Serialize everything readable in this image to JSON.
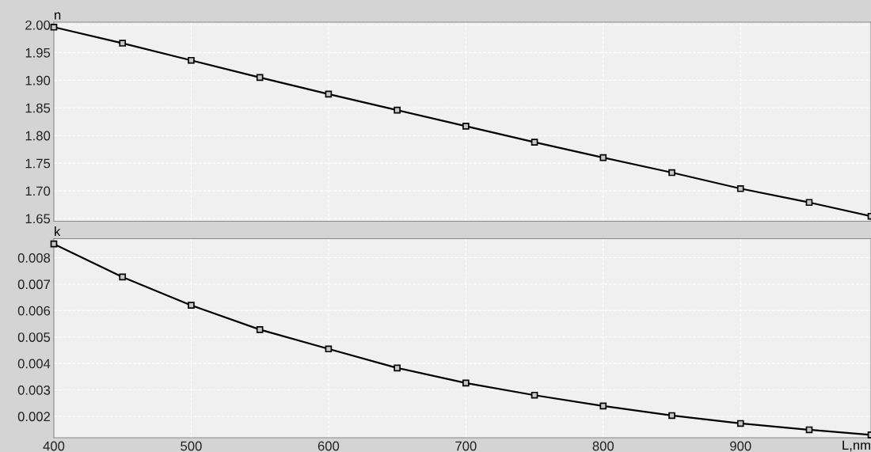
{
  "chart_data": [
    {
      "type": "line",
      "ylabel": "n",
      "x": [
        400,
        450,
        500,
        550,
        600,
        650,
        700,
        750,
        800,
        850,
        900,
        950,
        995
      ],
      "series": [
        {
          "color": "#000000",
          "values": [
            1.996,
            1.967,
            1.936,
            1.905,
            1.875,
            1.846,
            1.817,
            1.788,
            1.76,
            1.733,
            1.704,
            1.679,
            1.654
          ]
        }
      ],
      "xlim": [
        400,
        995
      ],
      "xticks": [
        400,
        500,
        600,
        700,
        800,
        900
      ],
      "ylim": [
        1.645,
        2.005
      ],
      "yticks": [
        {
          "value": 1.65,
          "label": "1.65"
        },
        {
          "value": 1.7,
          "label": "1.70"
        },
        {
          "value": 1.75,
          "label": "1.75"
        },
        {
          "value": 1.8,
          "label": "1.80"
        },
        {
          "value": 1.85,
          "label": "1.85"
        },
        {
          "value": 1.9,
          "label": "1.90"
        },
        {
          "value": 1.95,
          "label": "1.95"
        },
        {
          "value": 2.0,
          "label": "2.00"
        }
      ],
      "grid": true,
      "marker": "square",
      "line_style": "solid",
      "tick_labels": "y"
    },
    {
      "type": "line",
      "ylabel": "k",
      "xlabel": "L,nm",
      "x": [
        400,
        450,
        500,
        550,
        600,
        650,
        700,
        750,
        800,
        850,
        900,
        950,
        995
      ],
      "series": [
        {
          "color": "#000000",
          "values": [
            0.00852,
            0.00727,
            0.0062,
            0.00528,
            0.00455,
            0.00383,
            0.00326,
            0.0028,
            0.00239,
            0.00203,
            0.00173,
            0.00149,
            0.0013
          ]
        }
      ],
      "xlim": [
        400,
        995
      ],
      "xticks": [
        400,
        500,
        600,
        700,
        800,
        900
      ],
      "ylim": [
        0.00119,
        0.00872
      ],
      "yticks": [
        0.002,
        0.003,
        0.004,
        0.005,
        0.006,
        0.007,
        0.008
      ],
      "grid": true,
      "marker": "square",
      "line_style": "solid"
    }
  ]
}
